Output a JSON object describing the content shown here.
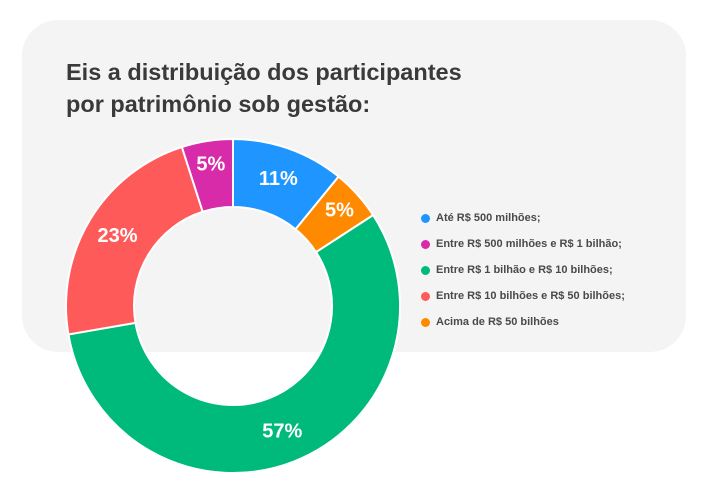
{
  "title_line1": "Eis a distribuição dos participantes",
  "title_line2": "por patrimônio sob gestão:",
  "chart_data": {
    "type": "pie",
    "categories": [
      "Até R$ 500 milhões;",
      "Acima de R$ 50 bilhões",
      "Entre R$ 1 bilhão e R$ 10 bilhões;",
      "Entre R$ 10 bilhões e R$ 50 bilhões;",
      "Entre R$ 500 milhões e R$ 1 bilhão;"
    ],
    "values": [
      11,
      5,
      57,
      23,
      5
    ],
    "labels": [
      "11%",
      "5%",
      "57%",
      "23%",
      "5%"
    ],
    "colors": [
      "#1f96ff",
      "#ff8a00",
      "#00ba7c",
      "#ff5a5a",
      "#d82ba9"
    ],
    "donut": true,
    "legend": "right"
  },
  "legend": [
    {
      "label": "Até R$ 500 milhões;",
      "color": "#1f96ff"
    },
    {
      "label": "Entre R$ 500 milhões e R$ 1 bilhão;",
      "color": "#d82ba9"
    },
    {
      "label": "Entre R$ 1 bilhão e R$ 10 bilhões;",
      "color": "#00ba7c"
    },
    {
      "label": "Entre R$ 10 bilhões e R$ 50 bilhões;",
      "color": "#ff5a5a"
    },
    {
      "label": "Acima de R$ 50 bilhões",
      "color": "#ff8a00"
    }
  ]
}
